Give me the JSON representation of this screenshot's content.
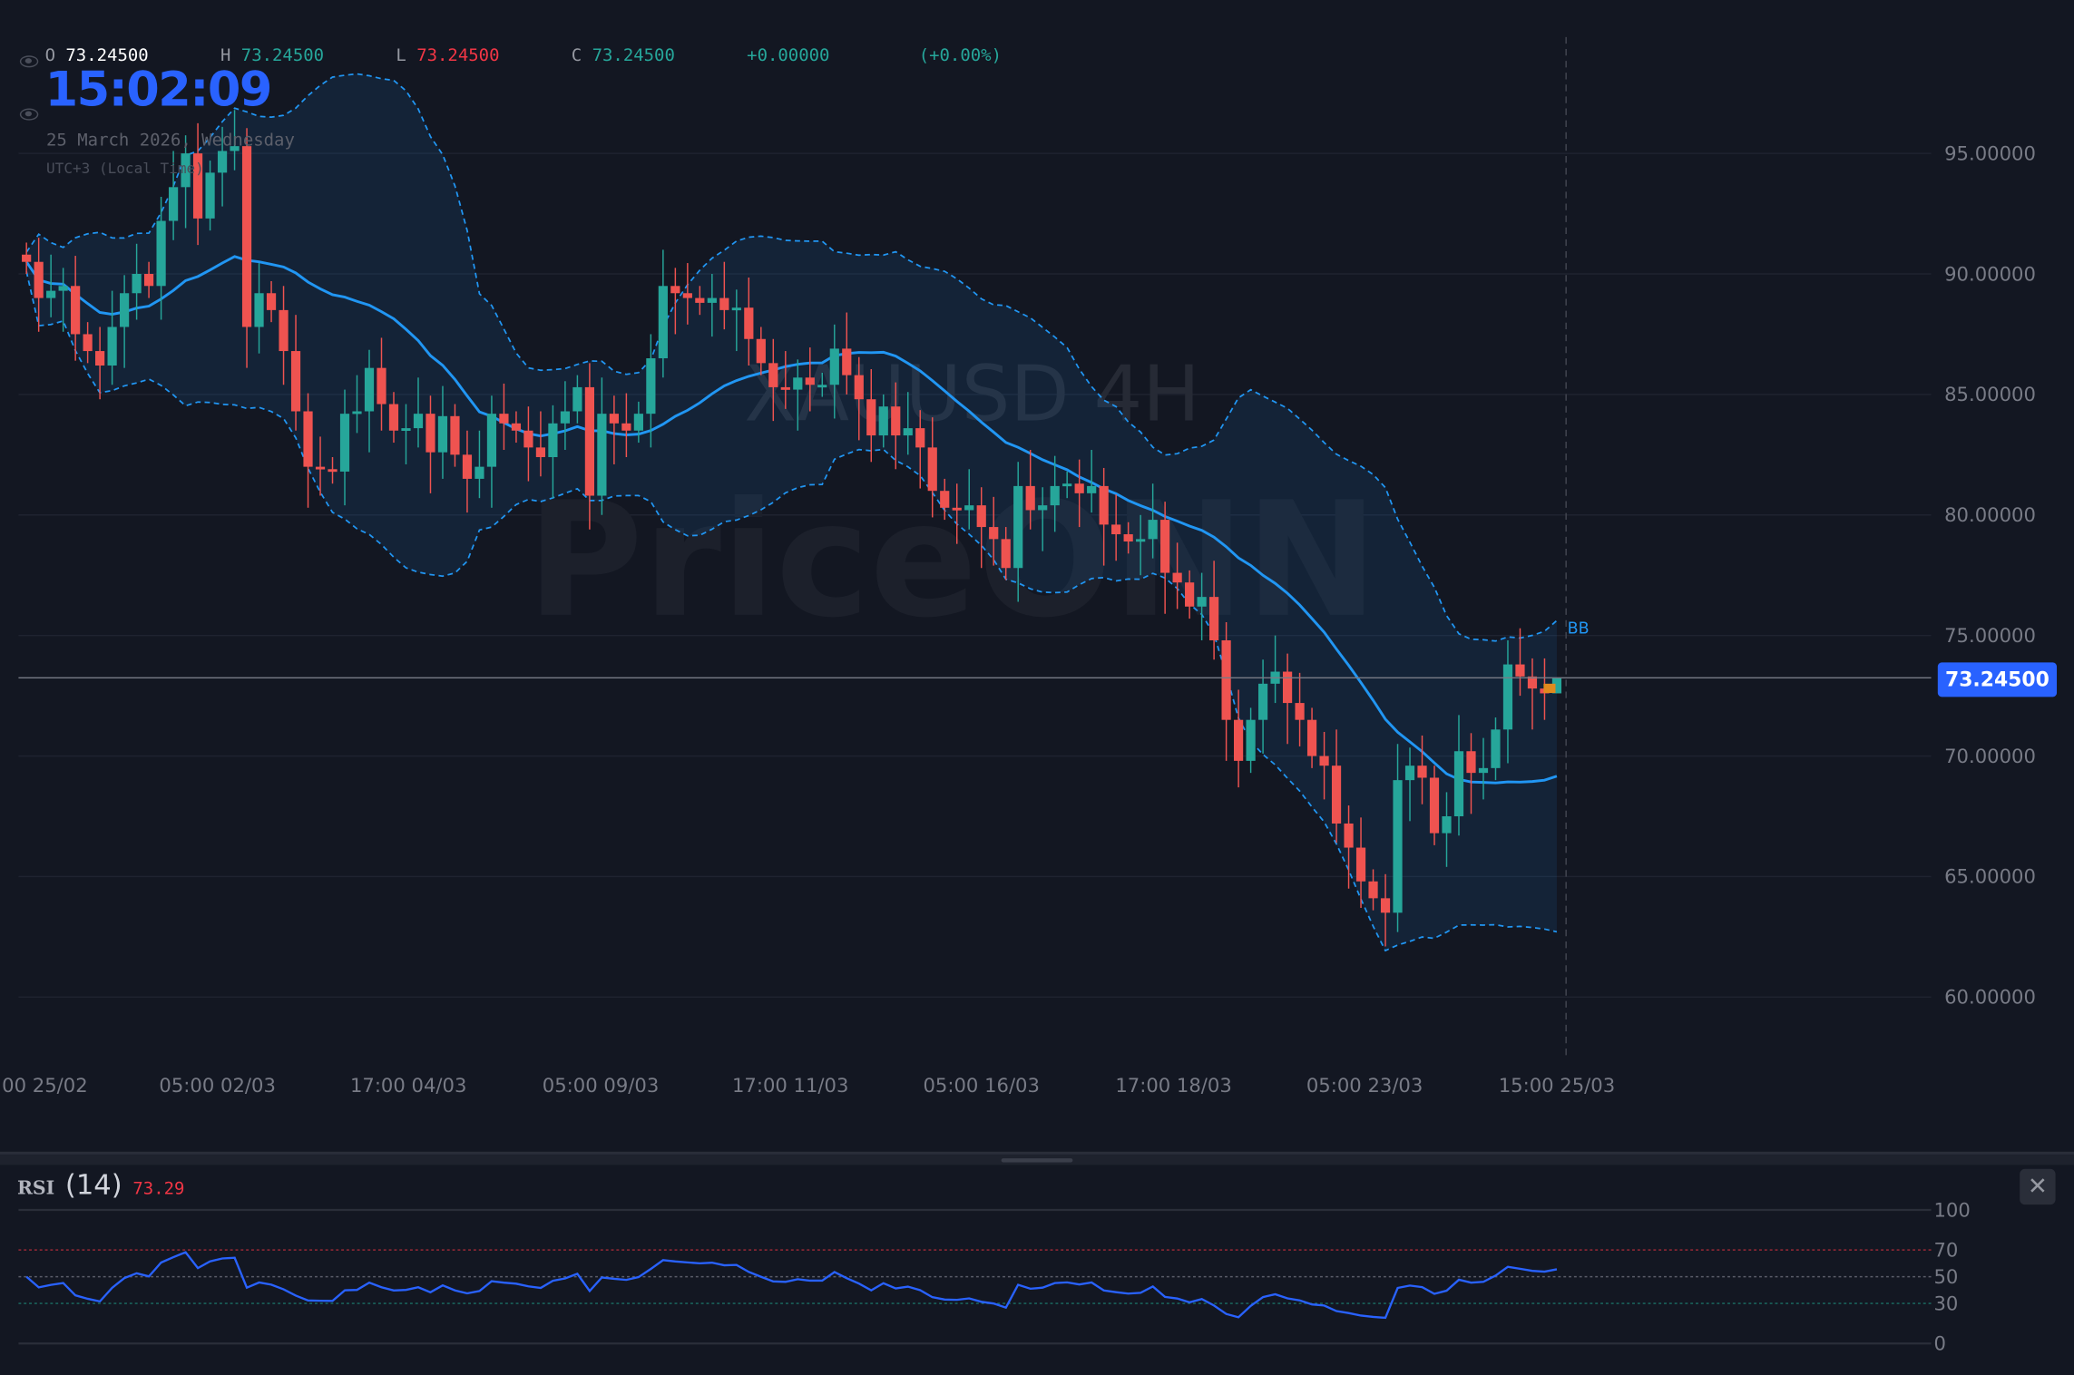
{
  "legend": {
    "open_label": "O",
    "open": "73.24500",
    "high_label": "H",
    "high": "73.24500",
    "low_label": "L",
    "low": "73.24500",
    "close_label": "C",
    "close": "73.24500",
    "change": "+0.00000",
    "change_pct": "(+0.00%)"
  },
  "clock": {
    "time": "15:02:09",
    "date": "25 March 2026, Wednesday",
    "timezone": "UTC+3 (Local Time)"
  },
  "watermark": {
    "symbol": "XAUUSD 4H",
    "brand": "PriceONN"
  },
  "colors": {
    "up": "#26a69a",
    "down": "#ef5350",
    "band": "#2196f3",
    "accent": "#2962ff",
    "rsi": "#2962ff",
    "overbought": "#f23645",
    "oversold": "#22ab94"
  },
  "current_price": "73.24500",
  "current_price_value": 73.245,
  "indicator_label": "BB",
  "rsi": {
    "name": "RSI",
    "length": "(14)",
    "value": "73.29",
    "levels": [
      "100",
      "70",
      "50",
      "30",
      "0"
    ],
    "close_icon": "close-icon"
  },
  "chart_data": {
    "type": "candlestick",
    "symbol": "XAUUSD",
    "timeframe": "4H",
    "ylim": [
      57.5,
      98
    ],
    "y_ticks": [
      "95.00000",
      "90.00000",
      "85.00000",
      "80.00000",
      "75.00000",
      "70.00000",
      "65.00000",
      "60.00000"
    ],
    "y_tick_values": [
      95,
      90,
      85,
      80,
      75,
      70,
      65,
      60
    ],
    "x_ticks": [
      "00 25/02",
      "05:00 02/03",
      "17:00 04/03",
      "05:00 09/03",
      "17:00 11/03",
      "05:00 16/03",
      "17:00 18/03",
      "05:00 23/03",
      "15:00 25/03"
    ],
    "x_tick_candle_index": [
      1.5,
      15.6,
      31.2,
      46.9,
      62.4,
      78,
      93.7,
      109.3,
      125
    ],
    "bollinger": {
      "period": 20,
      "stddev": 2
    },
    "grid": true,
    "closes": [
      90.5,
      89,
      89.3,
      89.5,
      87.5,
      86.8,
      86.2,
      87.8,
      89.2,
      90,
      89.5,
      92.2,
      93.6,
      95,
      92.3,
      94.2,
      95.1,
      95.3,
      87.8,
      89.2,
      88.5,
      86.8,
      84.3,
      82,
      81.9,
      81.8,
      84.2,
      84.3,
      86.1,
      84.6,
      83.5,
      83.6,
      84.2,
      82.6,
      84.1,
      82.5,
      81.5,
      82,
      84.2,
      83.8,
      83.5,
      82.8,
      82.4,
      83.8,
      84.3,
      85.3,
      80.8,
      84.2,
      83.8,
      83.5,
      84.2,
      86.5,
      89.5,
      89.2,
      89,
      88.8,
      89,
      88.5,
      88.6,
      87.3,
      86.3,
      85.3,
      85.2,
      85.7,
      85.4,
      85.4,
      86.9,
      85.8,
      84.8,
      83.3,
      84.5,
      83.3,
      83.6,
      82.8,
      81,
      80.3,
      80.2,
      80.4,
      79.5,
      79,
      77.8,
      81.2,
      80.2,
      80.4,
      81.2,
      81.3,
      80.9,
      81.2,
      79.6,
      79.2,
      78.9,
      79,
      79.8,
      77.6,
      77.2,
      76.2,
      76.6,
      74.8,
      71.5,
      69.8,
      71.5,
      73,
      73.5,
      72.2,
      71.5,
      70,
      69.6,
      67.2,
      66.2,
      64.8,
      64.1,
      63.5,
      69,
      69.6,
      69.1,
      66.8,
      67.5,
      70.2,
      69.3,
      69.5,
      71.1,
      73.8,
      73.3,
      72.8,
      72.6,
      73.245
    ]
  }
}
